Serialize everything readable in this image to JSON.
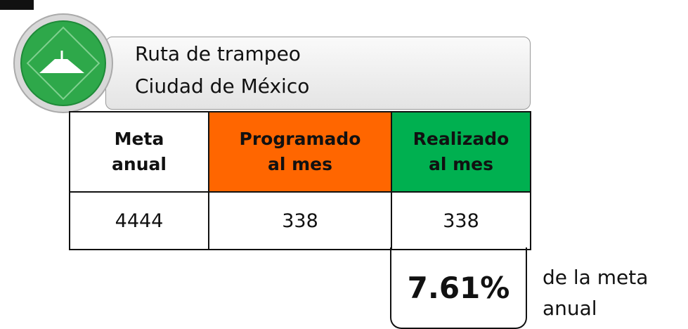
{
  "header": {
    "lines": [
      "Ruta de trampeo",
      "Ciudad de México"
    ]
  },
  "table": {
    "headers": [
      [
        "Meta",
        "anual"
      ],
      [
        "Programado",
        "al mes"
      ],
      [
        "Realizado",
        "al mes"
      ]
    ],
    "rows": [
      [
        "4444",
        "338",
        "338"
      ]
    ]
  },
  "summary": {
    "value": "7.61%",
    "note": [
      "de la meta",
      "anual"
    ]
  }
}
